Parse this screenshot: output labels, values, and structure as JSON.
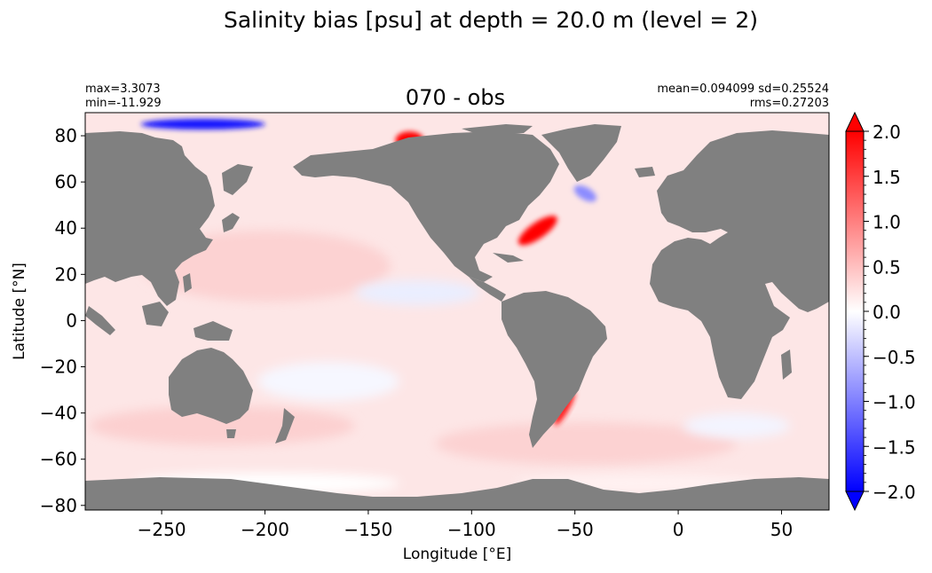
{
  "chart_data": {
    "type": "heatmap",
    "title": "Salinity bias [psu] at depth = 20.0 m (level = 2)",
    "subtitle": "070 - obs",
    "stats": {
      "max": "max=3.3073",
      "min": "min=-11.929",
      "mean_sd": "mean=0.094099 sd=0.25524",
      "rms": "rms=0.27203"
    },
    "xlabel": "Longitude [°E]",
    "ylabel": "Latitude [°N]",
    "xlim": [
      -287,
      73
    ],
    "ylim": [
      -82,
      90
    ],
    "x_ticks": [
      -250,
      -200,
      -150,
      -100,
      -50,
      0,
      50
    ],
    "x_tick_labels": [
      "−250",
      "−200",
      "−150",
      "−100",
      "−50",
      "0",
      "50"
    ],
    "y_ticks": [
      -80,
      -60,
      -40,
      -20,
      0,
      20,
      40,
      60,
      80
    ],
    "y_tick_labels": [
      "−80",
      "−60",
      "−40",
      "−20",
      "0",
      "20",
      "40",
      "60",
      "80"
    ],
    "colorbar": {
      "range": [
        -2.0,
        2.0
      ],
      "extend": "both",
      "ticks": [
        -2.0,
        -1.5,
        -1.0,
        -0.5,
        0.0,
        0.5,
        1.0,
        1.5,
        2.0
      ],
      "tick_labels": [
        "−2.0",
        "−1.5",
        "−1.0",
        "−0.5",
        "0.0",
        "0.5",
        "1.0",
        "1.5",
        "2.0"
      ],
      "colormap": "bwr",
      "colors": {
        "low": "#0000ff",
        "mid": "#ffffff",
        "high": "#ff0000"
      }
    },
    "land_color": "#808080",
    "ocean_base_bias": 0.15,
    "highlights": [
      {
        "name": "gulf-stream-bias",
        "lon": -68,
        "lat": 39,
        "value": 2.0
      },
      {
        "name": "brazil-current-bias",
        "lon": -55,
        "lat": -38,
        "value": 1.8
      },
      {
        "name": "beaufort-sea-bias",
        "lon": -130,
        "lat": 78,
        "value": 2.0
      },
      {
        "name": "labrador-sea-bias",
        "lon": -45,
        "lat": 55,
        "value": -0.9
      },
      {
        "name": "arctic-siberian-bias",
        "lon": -230,
        "lat": 85,
        "value": -1.8
      }
    ]
  }
}
